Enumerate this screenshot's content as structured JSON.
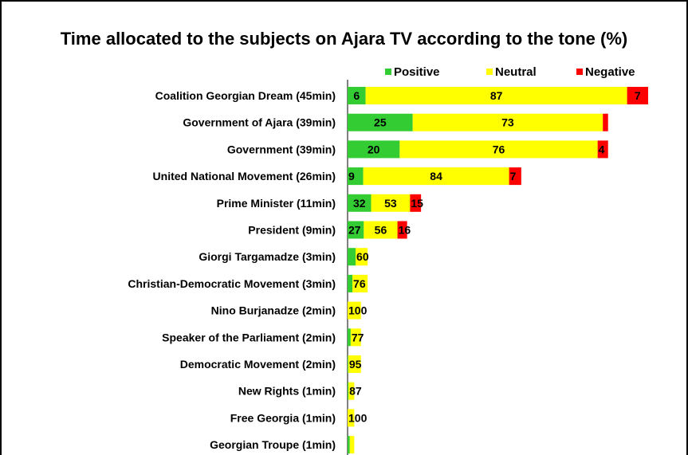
{
  "chart_data": {
    "type": "bar",
    "orientation": "horizontal",
    "stacked": true,
    "title": "Time allocated to the subjects on Ajara TV according to the tone (%)",
    "xlabel": "",
    "ylabel": "",
    "xlim": [
      0,
      100
    ],
    "grid": false,
    "legend_position": "top-right",
    "categories": [
      "Coalition Georgian Dream (45min)",
      "Government of Ajara (39min)",
      "Government (39min)",
      "United National Movement (26min)",
      "Prime Minister (11min)",
      "President (9min)",
      "Giorgi Targamadze (3min)",
      "Christian-Democratic Movement (3min)",
      "Nino Burjanadze (2min)",
      "Speaker of the Parliament (2min)",
      "Democratic Movement (2min)",
      "New Rights (1min)",
      "Free Georgia (1min)",
      "Georgian Troupe  (1min)"
    ],
    "series": [
      {
        "name": "Positive",
        "color": "#33cc33",
        "values": [
          6,
          25,
          20,
          9,
          32,
          27,
          40,
          24,
          0,
          23,
          5,
          13,
          0,
          33
        ],
        "labels": [
          "6",
          "25",
          "20",
          "9",
          "32",
          "27",
          "",
          "",
          "",
          "",
          "",
          "",
          "",
          ""
        ]
      },
      {
        "name": "Neutral",
        "color": "#ffff00",
        "values": [
          87,
          73,
          76,
          84,
          53,
          56,
          60,
          76,
          100,
          77,
          95,
          87,
          100,
          67
        ],
        "labels": [
          "87",
          "73",
          "76",
          "84",
          "53",
          "56",
          "60",
          "76",
          "100",
          "77",
          "95",
          "87",
          "100",
          ""
        ]
      },
      {
        "name": "Negative",
        "color": "#ff0000",
        "values": [
          7,
          2,
          4,
          7,
          15,
          16,
          0,
          0,
          0,
          0,
          0,
          0,
          0,
          0
        ],
        "labels": [
          "7",
          "",
          "4",
          "7",
          "15",
          "16",
          "",
          "",
          "",
          "",
          "",
          "",
          "",
          ""
        ]
      }
    ],
    "bar_totals_min": [
      45,
      39,
      39,
      26,
      11,
      9,
      3,
      3,
      2,
      2,
      2,
      1,
      1,
      1
    ]
  }
}
